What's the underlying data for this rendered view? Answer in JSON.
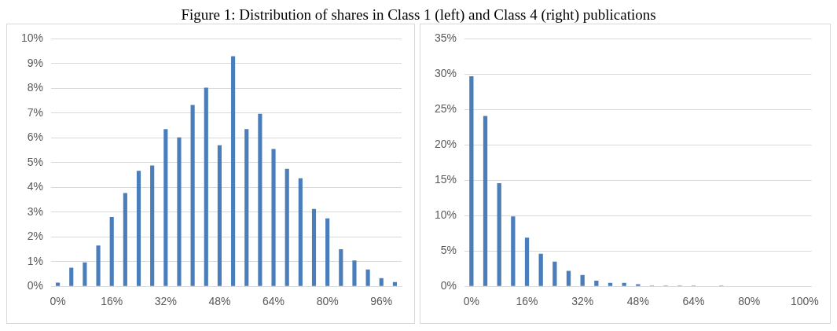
{
  "chart_data": [
    {
      "type": "bar",
      "title": "Figure 1: Distribution of shares in Class 1 (left) and Class 4 (right) publications",
      "categories": [
        "0%",
        null,
        null,
        null,
        "16%",
        null,
        null,
        null,
        "32%",
        null,
        null,
        null,
        "48%",
        null,
        null,
        null,
        "64%",
        null,
        null,
        null,
        "80%",
        null,
        null,
        null,
        "96%",
        null
      ],
      "values": [
        0.15,
        0.75,
        0.97,
        1.65,
        2.8,
        3.77,
        4.67,
        4.88,
        6.35,
        6.02,
        7.33,
        8.03,
        5.7,
        9.3,
        6.35,
        6.97,
        5.55,
        4.75,
        4.37,
        3.13,
        2.75,
        1.5,
        1.05,
        0.68,
        0.33,
        0.17
      ],
      "color": "#4a7ebb",
      "ylim": [
        0,
        10
      ],
      "yticks": [
        {
          "value": 0,
          "label": "0%"
        },
        {
          "value": 1,
          "label": "1%"
        },
        {
          "value": 2,
          "label": "2%"
        },
        {
          "value": 3,
          "label": "3%"
        },
        {
          "value": 4,
          "label": "4%"
        },
        {
          "value": 5,
          "label": "5%"
        },
        {
          "value": 6,
          "label": "6%"
        },
        {
          "value": 7,
          "label": "7%"
        },
        {
          "value": 8,
          "label": "8%"
        },
        {
          "value": 9,
          "label": "9%"
        },
        {
          "value": 10,
          "label": "10%"
        }
      ],
      "grid": "y"
    },
    {
      "type": "bar",
      "categories": [
        "0%",
        null,
        null,
        null,
        "16%",
        null,
        null,
        null,
        "32%",
        null,
        null,
        null,
        "48%",
        null,
        null,
        null,
        "64%",
        null,
        null,
        null,
        "80%",
        null,
        null,
        null,
        "100%"
      ],
      "values": [
        29.7,
        24.1,
        14.6,
        9.9,
        6.9,
        4.6,
        3.5,
        2.2,
        1.6,
        0.8,
        0.5,
        0.5,
        0.3,
        0.1,
        0.1,
        0.1,
        0.1,
        0,
        0.1,
        0,
        0,
        0,
        0,
        0,
        0
      ],
      "color": "#4a7ebb",
      "ylim": [
        0,
        35
      ],
      "yticks": [
        {
          "value": 0,
          "label": "0%"
        },
        {
          "value": 5,
          "label": "5%"
        },
        {
          "value": 10,
          "label": "10%"
        },
        {
          "value": 15,
          "label": "15%"
        },
        {
          "value": 20,
          "label": "20%"
        },
        {
          "value": 25,
          "label": "25%"
        },
        {
          "value": 30,
          "label": "30%"
        },
        {
          "value": 35,
          "label": "35%"
        }
      ],
      "grid": "y"
    }
  ]
}
